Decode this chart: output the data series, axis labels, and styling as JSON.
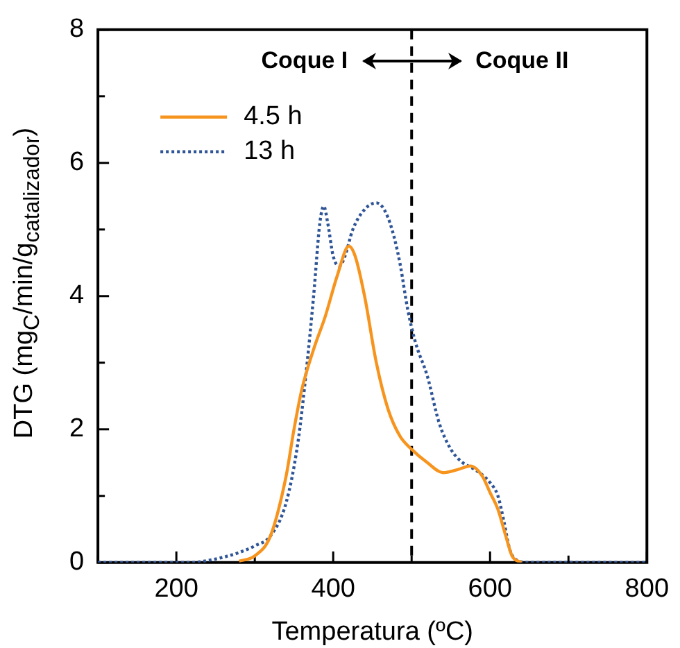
{
  "chart_data": {
    "type": "line",
    "xlabel": "Temperatura (ºC)",
    "ylabel": "DTG (mg$_{C}$/min/g$_{catalizador}$)",
    "xlim": [
      100,
      800
    ],
    "xticks": [
      {
        "value": 100,
        "label": null
      },
      200,
      {
        "value": 300,
        "label": null
      },
      400,
      {
        "value": 500,
        "label": null
      },
      600,
      {
        "value": 700,
        "label": null
      },
      800
    ],
    "ylim": [
      0,
      8
    ],
    "yticks": [
      0,
      {
        "value": 1,
        "label": null
      },
      2,
      {
        "value": 3,
        "label": null
      },
      4,
      {
        "value": 5,
        "label": null
      },
      6,
      {
        "value": 7,
        "label": null
      },
      8
    ],
    "grid": false,
    "legend": "top left",
    "marker": "none",
    "ref_lines": [
      {
        "axis": "x",
        "value": 500,
        "color": "#000000",
        "line_style": "dashed"
      }
    ],
    "annotations": [
      "Coque I",
      "Coque II"
    ],
    "series": [
      {
        "name": "4.5 h",
        "color": "#f7941d",
        "line_style": "solid",
        "x": [
          280,
          300,
          320,
          340,
          350,
          360,
          375,
          390,
          405,
          420,
          428,
          440,
          455,
          470,
          485,
          500,
          520,
          540,
          560,
          575,
          590,
          600,
          610,
          620,
          628,
          640
        ],
        "values": [
          0.02,
          0.1,
          0.4,
          1.3,
          2.0,
          2.6,
          3.2,
          3.7,
          4.3,
          4.75,
          4.6,
          4.0,
          3.0,
          2.3,
          1.9,
          1.7,
          1.5,
          1.35,
          1.4,
          1.45,
          1.3,
          1.05,
          0.8,
          0.4,
          0.1,
          0
        ]
      },
      {
        "name": "13 h",
        "color": "#2f5597",
        "line_style": "dotted",
        "x": [
          100,
          220,
          240,
          260,
          280,
          300,
          320,
          340,
          355,
          365,
          375,
          383,
          388,
          393,
          400,
          408,
          415,
          425,
          440,
          455,
          465,
          475,
          485,
          495,
          505,
          520,
          535,
          550,
          565,
          580,
          600,
          610,
          618,
          625,
          635,
          650,
          800
        ],
        "values": [
          0,
          0,
          0.03,
          0.08,
          0.15,
          0.25,
          0.4,
          0.9,
          1.8,
          2.8,
          4.0,
          5.1,
          5.35,
          5.1,
          4.6,
          4.45,
          4.6,
          5.0,
          5.3,
          5.4,
          5.3,
          5.0,
          4.5,
          3.8,
          3.3,
          2.8,
          2.1,
          1.7,
          1.5,
          1.4,
          1.2,
          1.0,
          0.6,
          0.2,
          0.03,
          0,
          0
        ]
      }
    ]
  }
}
